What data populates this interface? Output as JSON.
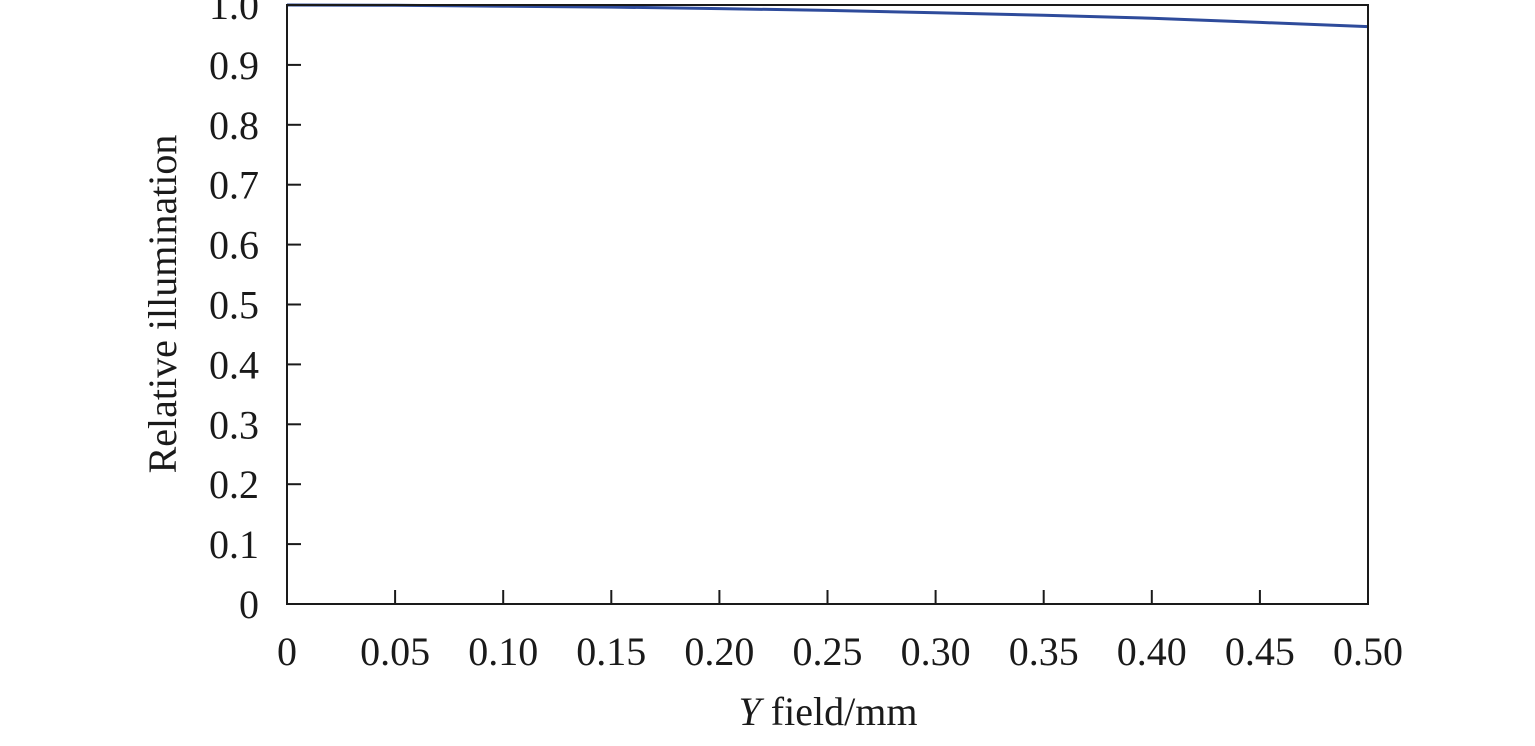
{
  "chart_data": {
    "type": "line",
    "title": "",
    "xlabel_prefix": "Y",
    "xlabel_rest": " field/mm",
    "ylabel": "Relative illumination",
    "xlim": [
      0,
      0.5
    ],
    "ylim": [
      0,
      1.0
    ],
    "x_ticks": [
      0,
      0.05,
      0.1,
      0.15,
      0.2,
      0.25,
      0.3,
      0.35,
      0.4,
      0.45,
      0.5
    ],
    "x_tick_labels": [
      "0",
      "0.05",
      "0.10",
      "0.15",
      "0.20",
      "0.25",
      "0.30",
      "0.35",
      "0.40",
      "0.45",
      "0.50"
    ],
    "y_ticks": [
      0,
      0.1,
      0.2,
      0.3,
      0.4,
      0.5,
      0.6,
      0.7,
      0.8,
      0.9,
      1.0
    ],
    "y_tick_labels": [
      "0",
      "0.1",
      "0.2",
      "0.3",
      "0.4",
      "0.5",
      "0.6",
      "0.7",
      "0.8",
      "0.9",
      "1.0"
    ],
    "grid": false,
    "legend": "none",
    "series": [
      {
        "color": "#2e4b9b",
        "x": [
          0,
          0.05,
          0.1,
          0.15,
          0.2,
          0.25,
          0.3,
          0.35,
          0.4,
          0.45,
          0.5
        ],
        "y": [
          1.0,
          0.9995,
          0.998,
          0.9965,
          0.994,
          0.991,
          0.987,
          0.983,
          0.978,
          0.971,
          0.964
        ]
      }
    ]
  }
}
